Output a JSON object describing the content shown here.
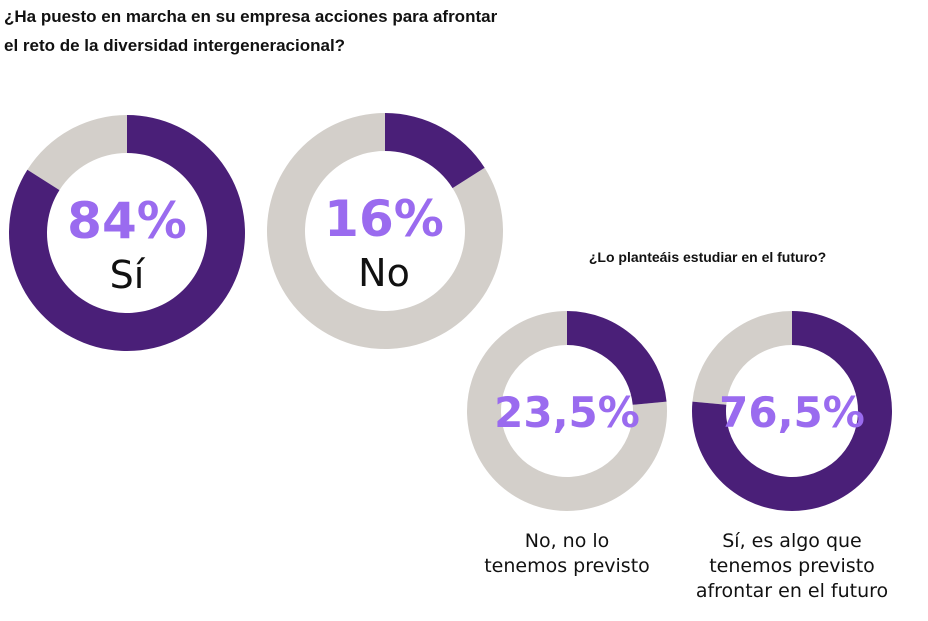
{
  "chart_data": [
    {
      "type": "pie",
      "variant": "donut",
      "title": "¿Ha puesto en marcha en su empresa acciones para afrontar el reto de la diversidad intergeneracional?",
      "title_lines": [
        "¿Ha puesto en marcha en su empresa acciones para afrontar",
        "el reto de la diversidad intergeneracional?"
      ],
      "donuts": [
        {
          "label": "Sí",
          "value": 84,
          "value_label": "84%"
        },
        {
          "label": "No",
          "value": 16,
          "value_label": "16%"
        }
      ]
    },
    {
      "type": "pie",
      "variant": "donut",
      "title": "¿Lo planteáis estudiar en el futuro?",
      "donuts": [
        {
          "label": "No, no lo tenemos previsto",
          "label_lines": [
            "No, no lo",
            "tenemos previsto"
          ],
          "value": 23.5,
          "value_label": "23,5%"
        },
        {
          "label": "Sí, es algo que tenemos previsto afrontar en el futuro",
          "label_lines": [
            "Sí, es algo que",
            "tenemos previsto",
            "afrontar en el futuro"
          ],
          "value": 76.5,
          "value_label": "76,5%"
        }
      ]
    }
  ],
  "colors": {
    "highlight": "#4a1f78",
    "remainder": "#d3cfca",
    "value_text": "#9a6bef"
  }
}
